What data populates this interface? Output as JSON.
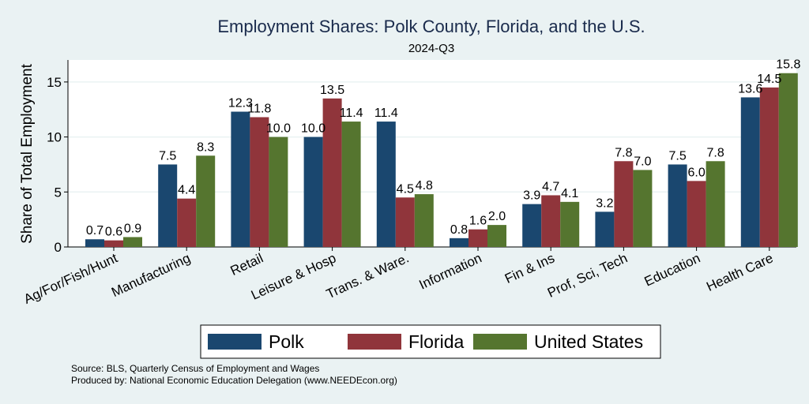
{
  "chart_data": {
    "type": "bar",
    "title": "Employment Shares: Polk County, Florida, and the U.S.",
    "subtitle": "2024-Q3",
    "ylabel": "Share of Total Employment",
    "xlabel": "",
    "ylim": [
      0,
      17
    ],
    "yticks": [
      0,
      5,
      10,
      15
    ],
    "grid": true,
    "legend_position": "bottom",
    "categories": [
      "Ag/For/Fish/Hunt",
      "Manufacturing",
      "Retail",
      "Leisure & Hosp",
      "Trans. & Ware.",
      "Information",
      "Fin & Ins",
      "Prof, Sci, Tech",
      "Education",
      "Health Care"
    ],
    "series": [
      {
        "name": "Polk",
        "color": "#1a476f",
        "values": [
          0.7,
          7.5,
          12.3,
          10.0,
          11.4,
          0.8,
          3.9,
          3.2,
          7.5,
          13.6
        ],
        "labels": [
          "0.7",
          "7.5",
          "12.3",
          "10.0",
          "11.4",
          "0.8",
          "3.9",
          "3.2",
          "7.5",
          "13.6"
        ]
      },
      {
        "name": "Florida",
        "color": "#90353b",
        "values": [
          0.6,
          4.4,
          11.8,
          13.5,
          4.5,
          1.6,
          4.7,
          7.8,
          6.0,
          14.5
        ],
        "labels": [
          "0.6",
          "4.4",
          "11.8",
          "13.5",
          "4.5",
          "1.6",
          "4.7",
          "7.8",
          "6.0",
          "14.5"
        ]
      },
      {
        "name": "United States",
        "color": "#55752f",
        "values": [
          0.9,
          8.3,
          10.0,
          11.4,
          4.8,
          2.0,
          4.1,
          7.0,
          7.8,
          15.8
        ],
        "labels": [
          "0.9",
          "8.3",
          "10.0",
          "11.4",
          "4.8",
          "2.0",
          "4.1",
          "7.0",
          "7.8",
          "15.8"
        ]
      }
    ]
  },
  "footnotes": {
    "source": "Source: BLS, Quarterly Census of Employment and Wages",
    "produced": "Produced by: National Economic Education Delegation (www.NEEDEcon.org)"
  }
}
